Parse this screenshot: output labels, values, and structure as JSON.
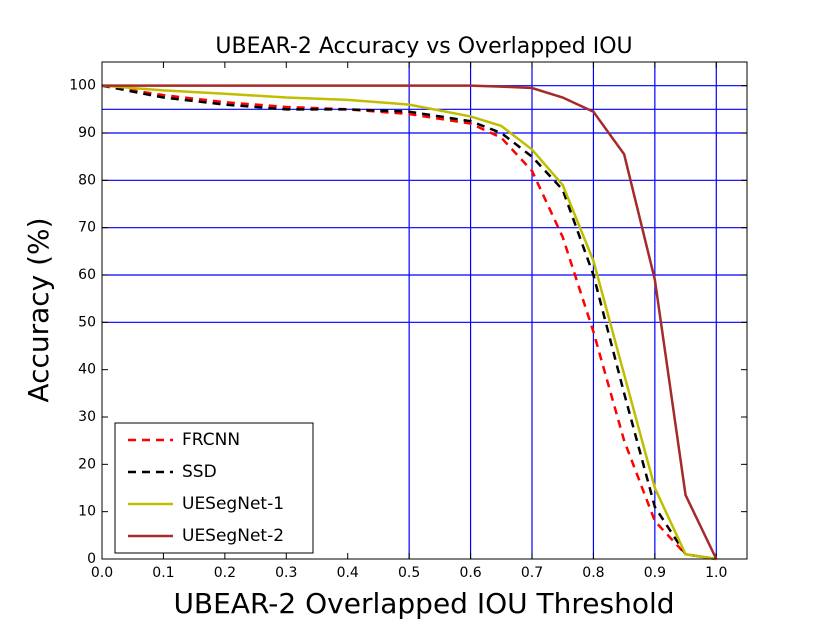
{
  "chart_data": {
    "type": "line",
    "title": "UBEAR-2 Accuracy vs Overlapped IOU",
    "x_label": "UBEAR-2 Overlapped IOU Threshold",
    "y_label": "Accuracy (%)",
    "x": [
      0,
      0.1,
      0.2,
      0.3,
      0.4,
      0.5,
      0.6,
      0.65,
      0.7,
      0.75,
      0.8,
      0.85,
      0.9,
      0.95,
      1.0
    ],
    "series": [
      {
        "name": "FRCNN",
        "color": "#ff0000",
        "linestyle": "dashed",
        "values": [
          100,
          98,
          96.5,
          95.5,
          95,
          94,
          92,
          89,
          82,
          68,
          48,
          25,
          8,
          1,
          0
        ]
      },
      {
        "name": "SSD",
        "color": "#000000",
        "linestyle": "dashed",
        "values": [
          100,
          97.5,
          96,
          95,
          95,
          94.5,
          92.5,
          90,
          85,
          78,
          60,
          35,
          11,
          1,
          0
        ]
      },
      {
        "name": "UESegNet-1",
        "color": "#bfbf00",
        "linestyle": "solid",
        "values": [
          100,
          99,
          98.3,
          97.5,
          97,
          96,
          93.5,
          91.5,
          86.5,
          79,
          63,
          39,
          15,
          1,
          0
        ]
      },
      {
        "name": "UESegNet-2",
        "color": "#a52a2a",
        "linestyle": "solid",
        "values": [
          100,
          100,
          100,
          100,
          100,
          100,
          100,
          99.8,
          99.5,
          97.5,
          94.5,
          85.5,
          59,
          13.5,
          0
        ]
      }
    ],
    "xlim": [
      0,
      1.05
    ],
    "ylim": [
      0,
      105
    ],
    "xticks": [
      {
        "value": 0,
        "label": "0.0"
      },
      0.1,
      0.2,
      0.3,
      0.4,
      0.5,
      0.6,
      0.7,
      0.8,
      0.9,
      {
        "value": 1,
        "label": "1.0"
      }
    ],
    "yticks": [
      0,
      10,
      20,
      30,
      40,
      50,
      60,
      70,
      80,
      90,
      100
    ],
    "xgrid": [
      0.5,
      0.6,
      0.7,
      0.8,
      0.9,
      1.0
    ],
    "ygrid": [
      50,
      60,
      70,
      80,
      90,
      95,
      100
    ],
    "grid_color": "#0000ff",
    "legend": "lower left"
  }
}
